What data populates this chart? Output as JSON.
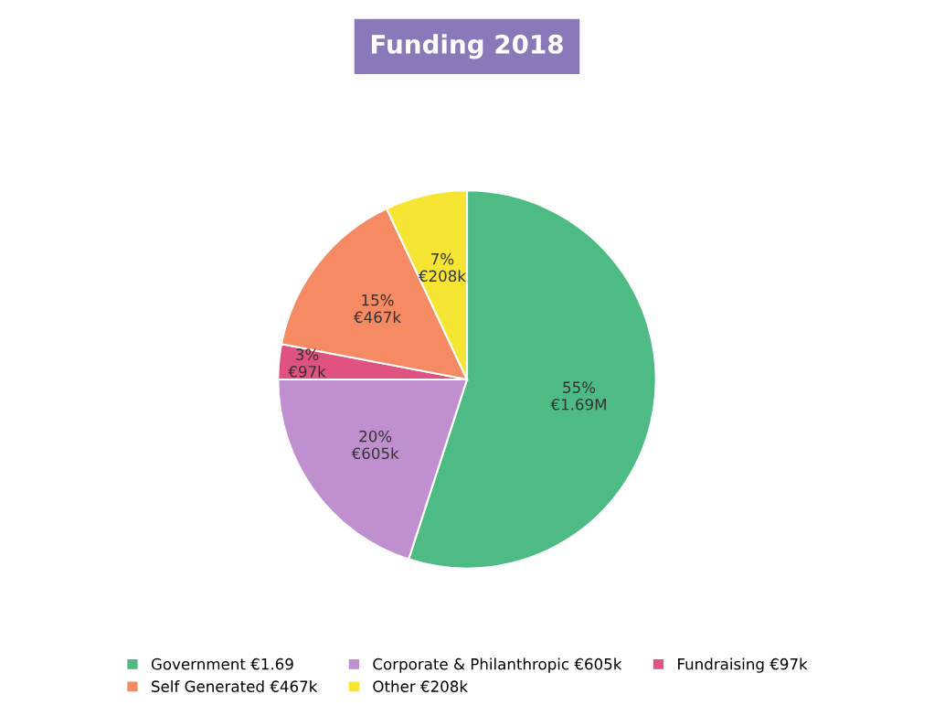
{
  "chart_data": {
    "type": "pie",
    "title": "Funding 2018",
    "categories": [
      "Government €1.69",
      "Corporate & Philanthropic €605k",
      "Fundraising €97k",
      "Self Generated €467k",
      "Other €208k"
    ],
    "values": [
      55,
      20,
      3,
      15,
      7
    ],
    "value_labels": [
      "55%\n€1.69M",
      "20%\n€605k",
      "3%\n€97k",
      "15%\n€467k",
      "7%\n€208k"
    ],
    "colors": [
      "#4dbb83",
      "#c08fcf",
      "#e0527f",
      "#f58a63",
      "#f7e534"
    ],
    "legend": "bottom"
  }
}
